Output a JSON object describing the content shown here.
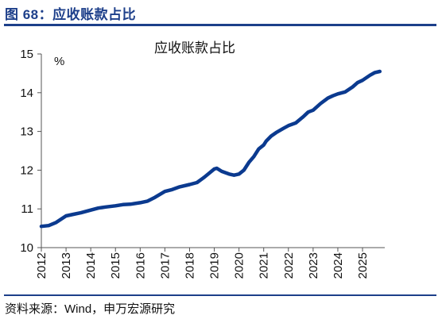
{
  "figure_title": "图 68：应收账款占比",
  "source_note": "资料来源：Wind，申万宏源研究",
  "colors": {
    "line": "#0b3a8f",
    "title": "#1d3f8a",
    "axis": "#555555"
  },
  "chart_data": {
    "type": "line",
    "title": "应收账款占比",
    "ylabel": "%",
    "ylim": [
      10,
      15
    ],
    "yticks": [
      10,
      11,
      12,
      13,
      14,
      15
    ],
    "xlim": [
      2012,
      2025.9
    ],
    "xticks": [
      "2012",
      "2013",
      "2014",
      "2015",
      "2016",
      "2017",
      "2018",
      "2019",
      "2020",
      "2021",
      "2022",
      "2023",
      "2024",
      "2025"
    ],
    "grid": false,
    "series": [
      {
        "x": [
          2012.0,
          2012.3,
          2012.6,
          2013.0,
          2013.3,
          2013.6,
          2014.0,
          2014.3,
          2014.6,
          2015.0,
          2015.3,
          2015.6,
          2016.0,
          2016.3,
          2016.6,
          2017.0,
          2017.3,
          2017.6,
          2018.0,
          2018.3,
          2018.6,
          2019.0,
          2019.1,
          2019.3,
          2019.6,
          2019.8,
          2020.0,
          2020.2,
          2020.4,
          2020.6,
          2020.8,
          2021.0,
          2021.1,
          2021.3,
          2021.5,
          2021.8,
          2022.0,
          2022.3,
          2022.6,
          2022.8,
          2023.0,
          2023.3,
          2023.6,
          2023.8,
          2024.0,
          2024.3,
          2024.6,
          2024.8,
          2025.0,
          2025.3,
          2025.5,
          2025.7
        ],
        "values": [
          10.55,
          10.57,
          10.65,
          10.82,
          10.86,
          10.9,
          10.97,
          11.02,
          11.05,
          11.08,
          11.11,
          11.12,
          11.16,
          11.2,
          11.3,
          11.45,
          11.5,
          11.57,
          11.63,
          11.68,
          11.82,
          12.03,
          12.05,
          11.97,
          11.9,
          11.87,
          11.9,
          12.0,
          12.2,
          12.35,
          12.55,
          12.65,
          12.75,
          12.88,
          12.97,
          13.08,
          13.15,
          13.22,
          13.38,
          13.5,
          13.55,
          13.72,
          13.86,
          13.92,
          13.97,
          14.02,
          14.15,
          14.26,
          14.32,
          14.45,
          14.52,
          14.55
        ]
      }
    ]
  }
}
